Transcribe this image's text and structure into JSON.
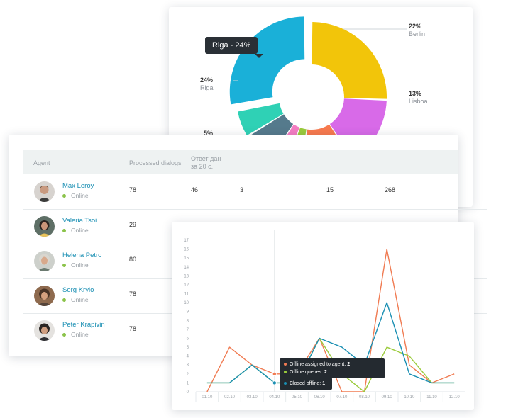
{
  "pie": {
    "tooltip": "Riga - 24%",
    "labels": [
      {
        "pct": "22%",
        "city": "Berlin"
      },
      {
        "pct": "13%",
        "city": "Lisboa"
      },
      {
        "pct": "24%",
        "city": "Riga"
      },
      {
        "pct": "5%",
        "city": ""
      }
    ],
    "slices": [
      {
        "name": "Berlin",
        "value": 22,
        "color": "#f2c50a"
      },
      {
        "name": "Lisboa",
        "value": 13,
        "color": "#d86ae8"
      },
      {
        "name": "",
        "value": 10,
        "color": "#f87a4e"
      },
      {
        "name": "",
        "value": 3,
        "color": "#9bcb3c"
      },
      {
        "name": "",
        "value": 3,
        "color": "#f47dc3"
      },
      {
        "name": "",
        "value": 6,
        "color": "#557a8c"
      },
      {
        "name": "",
        "value": 5,
        "color": "#2fd1b5"
      },
      {
        "name": "Riga",
        "value": 24,
        "color": "#1ab0d8"
      }
    ]
  },
  "table": {
    "headers": {
      "agent": "Agent",
      "processed": "Processed dialogs",
      "answered_line1": "Ответ дан",
      "answered_line2": "за 20 с."
    },
    "rows": [
      {
        "name": "Max Leroy",
        "status": "Online",
        "processed": "78",
        "answered": "46",
        "c3": "3",
        "c4": "15",
        "c5": "268"
      },
      {
        "name": "Valeria Tsoi",
        "status": "Online",
        "processed": "29"
      },
      {
        "name": "Helena Petro",
        "status": "Online",
        "processed": "80"
      },
      {
        "name": "Serg Krylo",
        "status": "Online",
        "processed": "78"
      },
      {
        "name": "Peter Krapivin",
        "status": "Online",
        "processed": "78"
      }
    ],
    "status_color": "#8bc34a"
  },
  "chart_data": {
    "type": "line",
    "x": [
      "01.10",
      "02.10",
      "03.10",
      "04.10",
      "05.10",
      "06.10",
      "07.10",
      "08.10",
      "09.10",
      "10.10",
      "11.10",
      "12.10"
    ],
    "ylim": [
      0,
      17
    ],
    "yticks": [
      0,
      1,
      2,
      3,
      4,
      5,
      6,
      7,
      8,
      9,
      10,
      11,
      12,
      13,
      14,
      15,
      16,
      17
    ],
    "series": [
      {
        "name": "Offline assigned to agent",
        "color": "#f07b52",
        "values": [
          0,
          5,
          3,
          2,
          2,
          6,
          0,
          0,
          16,
          3,
          1,
          2
        ]
      },
      {
        "name": "Offline queues",
        "color": "#9bcb3c",
        "values": [
          1,
          1,
          3,
          1,
          1,
          6,
          2,
          0,
          5,
          4,
          1,
          1
        ]
      },
      {
        "name": "Closed offline",
        "color": "#1a8fb3",
        "values": [
          1,
          1,
          3,
          1,
          1,
          6,
          5,
          3,
          10,
          2,
          1,
          1
        ]
      }
    ],
    "tooltip": {
      "rows": [
        {
          "label": "Offline assigned to agent:",
          "value": "2",
          "color": "#f07b52"
        },
        {
          "label": "Offline queues:",
          "value": "2",
          "color": "#9bcb3c"
        },
        {
          "label": "Closed offline:",
          "value": "1",
          "color": "#1a8fb3"
        }
      ]
    }
  }
}
